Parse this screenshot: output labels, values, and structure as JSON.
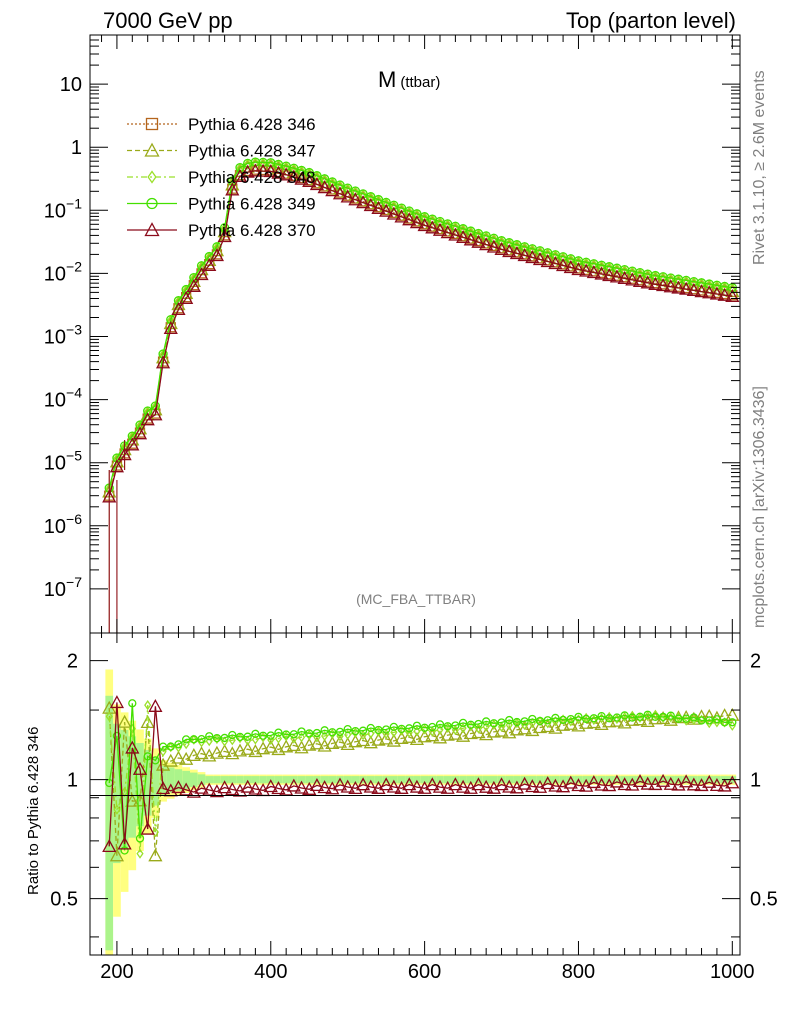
{
  "header": {
    "left": "7000 GeV pp",
    "right": "Top (parton level)"
  },
  "side_labels": {
    "upper": "Rivet 3.1.10, ≥ 2.6M events",
    "lower": "mcplots.cern.ch [arXiv:1306.3436]"
  },
  "chart_data": {
    "type": "line",
    "title_main": "M",
    "title_sub": "(ttbar)",
    "analysis": "(MC_FBA_TTBAR)",
    "xlabel": "",
    "ylabel_ratio": "Ratio to Pythia 6.428 346",
    "xlim": [
      165,
      1010
    ],
    "ylim": [
      2e-08,
      60
    ],
    "yscale": "log",
    "ratio_ylim": [
      0.36,
      2.35
    ],
    "ratio_yscale": "log",
    "xticks": [
      "200",
      "400",
      "600",
      "800",
      "1000"
    ],
    "yticks": [
      {
        "v": 10,
        "b": "10",
        "e": ""
      },
      {
        "v": 1,
        "b": "1",
        "e": ""
      },
      {
        "v": 0.1,
        "b": "10",
        "e": "−1"
      },
      {
        "v": 0.01,
        "b": "10",
        "e": "−2"
      },
      {
        "v": 0.001,
        "b": "10",
        "e": "−3"
      },
      {
        "v": 0.0001,
        "b": "10",
        "e": "−4"
      },
      {
        "v": 1e-05,
        "b": "10",
        "e": "−5"
      },
      {
        "v": 1e-06,
        "b": "10",
        "e": "−6"
      },
      {
        "v": 1e-07,
        "b": "10",
        "e": "−7"
      }
    ],
    "ratio_yticks": [
      {
        "v": 2,
        "label": "2"
      },
      {
        "v": 1,
        "label": "1"
      },
      {
        "v": 0.5,
        "label": "0.5"
      }
    ],
    "legend_position": "top-left",
    "grid": false,
    "series": [
      {
        "name": "Pythia 6.428 346",
        "color": "#b5651d",
        "marker": "square",
        "dash": "2,2",
        "scale": 1.0
      },
      {
        "name": "Pythia 6.428 347",
        "color": "#9aaa1a",
        "marker": "triangle",
        "dash": "5,3",
        "scale": 1.15
      },
      {
        "name": "Pythia 6.428 348",
        "color": "#9be02a",
        "marker": "diamond",
        "dash": "6,3,2,3",
        "scale": 1.28
      },
      {
        "name": "Pythia 6.428 349",
        "color": "#44e000",
        "marker": "circle",
        "dash": "",
        "scale": 1.32
      },
      {
        "name": "Pythia 6.428 370",
        "color": "#8b0a1a",
        "marker": "triangle",
        "dash": "",
        "scale": 0.96
      }
    ],
    "reference_shape": {
      "x": [
        180,
        190,
        200,
        210,
        220,
        230,
        240,
        250,
        260,
        270,
        280,
        290,
        300,
        310,
        320,
        330,
        340,
        350,
        360,
        370,
        380,
        400,
        420,
        450,
        500,
        600,
        700,
        800,
        900,
        1000
      ],
      "y": [
        3e-06,
        3e-06,
        9e-06,
        1.4e-05,
        2e-05,
        3e-05,
        5e-05,
        6e-05,
        0.0004,
        0.0014,
        0.0028,
        0.0042,
        0.0065,
        0.01,
        0.014,
        0.02,
        0.04,
        0.22,
        0.36,
        0.42,
        0.44,
        0.43,
        0.38,
        0.3,
        0.17,
        0.06,
        0.025,
        0.012,
        0.007,
        0.0045
      ]
    },
    "ratio_trends": {
      "x": [
        260,
        300,
        400,
        500,
        600,
        700,
        800,
        900,
        1000
      ],
      "347": [
        1.1,
        1.15,
        1.2,
        1.24,
        1.28,
        1.32,
        1.38,
        1.42,
        1.45
      ],
      "348": [
        1.18,
        1.25,
        1.27,
        1.3,
        1.33,
        1.37,
        1.42,
        1.45,
        1.38
      ],
      "349": [
        1.2,
        1.27,
        1.3,
        1.33,
        1.36,
        1.4,
        1.43,
        1.45,
        1.4
      ],
      "370": [
        0.95,
        0.94,
        0.95,
        0.96,
        0.96,
        0.96,
        0.97,
        0.98,
        0.97
      ]
    }
  }
}
